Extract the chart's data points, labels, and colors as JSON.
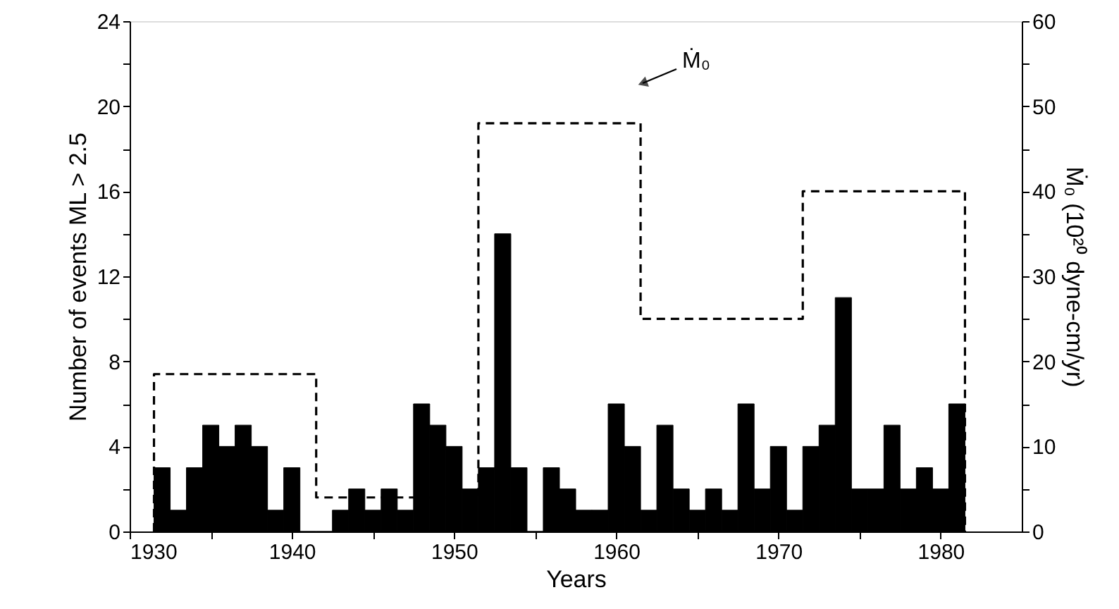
{
  "chart_data": {
    "type": "bar",
    "xlabel": "Years",
    "ylabel": "Number of events  ML > 2.5",
    "y2label": "Ṁ₀ (10²⁰ dyne-cm/yr)",
    "x": [
      1932,
      1933,
      1934,
      1935,
      1936,
      1937,
      1938,
      1939,
      1940,
      1941,
      1942,
      1943,
      1944,
      1945,
      1946,
      1947,
      1948,
      1949,
      1950,
      1951,
      1952,
      1953,
      1954,
      1955,
      1956,
      1957,
      1958,
      1959,
      1960,
      1961,
      1962,
      1963,
      1964,
      1965,
      1966,
      1967,
      1968,
      1969,
      1970,
      1971,
      1972,
      1973,
      1974,
      1975,
      1976,
      1977,
      1978,
      1979,
      1980,
      1981
    ],
    "series": [
      {
        "color": "#000000",
        "values": [
          3,
          1,
          3,
          5,
          4,
          5,
          4,
          1,
          3,
          0,
          0,
          1,
          2,
          1,
          2,
          1,
          6,
          5,
          4,
          2,
          3,
          14,
          3,
          0,
          3,
          2,
          1,
          1,
          6,
          4,
          1,
          5,
          2,
          1,
          2,
          1,
          6,
          2,
          4,
          1,
          4,
          5,
          11,
          2,
          2,
          5,
          2,
          3,
          2,
          6
        ]
      },
      {
        "type": "line",
        "axis": "y2",
        "color": "#000000",
        "line_style": "dashed",
        "marker": "none",
        "x": [
          1931.5,
          1931.5,
          1941.5,
          1941.5,
          1951.5,
          1951.5,
          1961.5,
          1961.5,
          1971.5,
          1971.5,
          1981.5,
          1981.5
        ],
        "values": [
          0,
          18.5,
          18.5,
          4,
          4,
          48,
          48,
          25,
          25,
          40,
          40,
          0
        ]
      }
    ],
    "xlim": [
      1930,
      1985
    ],
    "xticks": [
      1930,
      {
        "value": 1935,
        "label": null
      },
      1940,
      {
        "value": 1945,
        "label": null
      },
      1950,
      {
        "value": 1955,
        "label": null
      },
      1960,
      {
        "value": 1965,
        "label": null
      },
      1970,
      {
        "value": 1975,
        "label": null
      },
      1980
    ],
    "ylim": [
      0,
      24
    ],
    "yticks": [
      0,
      {
        "value": 2,
        "label": null
      },
      4,
      {
        "value": 6,
        "label": null
      },
      8,
      {
        "value": 10,
        "label": null
      },
      12,
      {
        "value": 14,
        "label": null
      },
      16,
      {
        "value": 18,
        "label": null
      },
      20,
      {
        "value": 22,
        "label": null
      },
      24
    ],
    "y2lim": [
      0,
      60
    ],
    "y2ticks": [
      0,
      {
        "value": 5,
        "label": null
      },
      10,
      {
        "value": 15,
        "label": null
      },
      20,
      {
        "value": 25,
        "label": null
      },
      30,
      {
        "value": 35,
        "label": null
      },
      40,
      {
        "value": 45,
        "label": null
      },
      50,
      {
        "value": 55,
        "label": null
      },
      60
    ],
    "annotations": [
      "Ṁ₀"
    ],
    "grid": false
  }
}
